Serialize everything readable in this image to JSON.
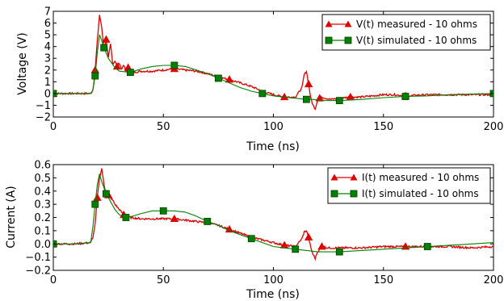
{
  "chart_data": [
    {
      "type": "line",
      "xlabel": "Time (ns)",
      "ylabel": "Voltage (V)",
      "xlim": [
        0,
        200
      ],
      "ylim": [
        -2,
        7
      ],
      "xticks": [
        "0",
        "50",
        "100",
        "150",
        "200"
      ],
      "yticks": [
        "−2",
        "−1",
        "0",
        "1",
        "2",
        "3",
        "4",
        "5",
        "6",
        "7"
      ],
      "legend_position": "top-right",
      "grid": false,
      "series": [
        {
          "name": "V(t) measured - 10 ohms",
          "color": "#e00000",
          "marker": "triangle",
          "x": [
            0,
            10,
            14,
            17,
            18,
            19,
            20,
            21,
            22,
            23,
            24,
            25,
            26,
            27,
            28,
            29,
            30,
            31,
            32,
            33,
            34,
            36,
            40,
            45,
            50,
            55,
            60,
            65,
            70,
            75,
            80,
            85,
            90,
            95,
            100,
            105,
            110,
            113,
            114,
            115,
            116,
            117,
            118,
            119,
            120,
            121,
            122,
            124,
            126,
            130,
            135,
            140,
            145,
            150,
            155,
            160,
            170,
            180,
            190,
            200
          ],
          "y": [
            0,
            0,
            0,
            0,
            0.3,
            2.0,
            4.5,
            6.7,
            5.6,
            3.8,
            4.6,
            3.0,
            4.2,
            2.5,
            2.8,
            2.3,
            2.6,
            2.1,
            2.4,
            1.9,
            2.2,
            1.8,
            1.9,
            1.9,
            2.0,
            2.1,
            2.0,
            1.9,
            1.7,
            1.4,
            1.2,
            0.9,
            0.6,
            0.2,
            -0.1,
            -0.3,
            -0.3,
            0.5,
            1.6,
            1.9,
            0.8,
            -0.4,
            -1.0,
            -1.3,
            -0.6,
            -0.4,
            -0.3,
            -0.4,
            -0.5,
            -0.4,
            -0.3,
            -0.3,
            -0.2,
            -0.1,
            -0.1,
            -0.2,
            -0.1,
            -0.1,
            -0.1,
            -0.1
          ]
        },
        {
          "name": "V(t) simulated - 10 ohms",
          "color": "#008000",
          "marker": "square",
          "x": [
            0,
            10,
            17,
            18,
            19,
            20,
            21,
            22,
            23,
            25,
            28,
            30,
            35,
            40,
            45,
            50,
            55,
            60,
            65,
            70,
            75,
            80,
            85,
            90,
            95,
            100,
            105,
            110,
            115,
            118,
            120,
            125,
            130,
            135,
            140,
            150,
            160,
            170,
            180,
            190,
            200
          ],
          "y": [
            0,
            0,
            0,
            0.3,
            1.5,
            3.5,
            5.0,
            4.5,
            3.9,
            3.0,
            2.2,
            1.9,
            1.8,
            2.1,
            2.3,
            2.4,
            2.4,
            2.3,
            2.0,
            1.7,
            1.3,
            0.9,
            0.5,
            0.2,
            0.0,
            -0.2,
            -0.3,
            -0.4,
            -0.5,
            -0.5,
            -0.55,
            -0.6,
            -0.6,
            -0.55,
            -0.5,
            -0.35,
            -0.25,
            -0.2,
            -0.1,
            -0.05,
            0.0
          ]
        }
      ]
    },
    {
      "type": "line",
      "xlabel": "Time (ns)",
      "ylabel": "Current (A)",
      "xlim": [
        0,
        200
      ],
      "ylim": [
        -0.2,
        0.6
      ],
      "xticks": [
        "0",
        "50",
        "100",
        "150",
        "200"
      ],
      "yticks": [
        "−0.2",
        "−0.1",
        "0.0",
        "0.1",
        "0.2",
        "0.3",
        "0.4",
        "0.5",
        "0.6"
      ],
      "legend_position": "top-right",
      "grid": false,
      "series": [
        {
          "name": "I(t) measured - 10 ohms",
          "color": "#e00000",
          "marker": "triangle",
          "x": [
            0,
            10,
            17,
            18,
            19,
            20,
            21,
            22,
            23,
            24,
            25,
            26,
            27,
            28,
            30,
            32,
            35,
            40,
            45,
            50,
            55,
            60,
            65,
            70,
            75,
            80,
            85,
            90,
            95,
            100,
            105,
            110,
            113,
            114,
            115,
            116,
            117,
            118,
            119,
            120,
            122,
            125,
            130,
            140,
            150,
            160,
            170,
            180,
            190,
            200
          ],
          "y": [
            0,
            0,
            0.01,
            0.05,
            0.15,
            0.35,
            0.5,
            0.57,
            0.45,
            0.38,
            0.37,
            0.35,
            0.33,
            0.3,
            0.26,
            0.22,
            0.2,
            0.19,
            0.19,
            0.19,
            0.19,
            0.18,
            0.17,
            0.16,
            0.14,
            0.11,
            0.08,
            0.05,
            0.03,
            0.01,
            -0.01,
            -0.02,
            0.04,
            0.09,
            0.1,
            0.05,
            -0.03,
            -0.08,
            -0.11,
            -0.06,
            -0.02,
            -0.03,
            -0.03,
            -0.03,
            -0.02,
            -0.02,
            -0.02,
            -0.02,
            -0.03,
            -0.02
          ]
        },
        {
          "name": "I(t) simulated - 10 ohms",
          "color": "#008000",
          "marker": "square",
          "x": [
            0,
            10,
            17,
            18,
            19,
            20,
            21,
            22,
            24,
            26,
            28,
            30,
            33,
            36,
            40,
            45,
            50,
            55,
            60,
            65,
            70,
            75,
            80,
            85,
            90,
            95,
            100,
            105,
            110,
            115,
            120,
            125,
            130,
            140,
            150,
            160,
            170,
            180,
            190,
            200
          ],
          "y": [
            0,
            0,
            0.01,
            0.13,
            0.3,
            0.45,
            0.53,
            0.47,
            0.38,
            0.32,
            0.26,
            0.22,
            0.2,
            0.21,
            0.23,
            0.25,
            0.25,
            0.25,
            0.24,
            0.21,
            0.17,
            0.14,
            0.1,
            0.07,
            0.04,
            0.01,
            -0.02,
            -0.03,
            -0.04,
            -0.05,
            -0.06,
            -0.06,
            -0.06,
            -0.05,
            -0.04,
            -0.03,
            -0.02,
            -0.01,
            0.0,
            0.01
          ]
        }
      ]
    }
  ]
}
